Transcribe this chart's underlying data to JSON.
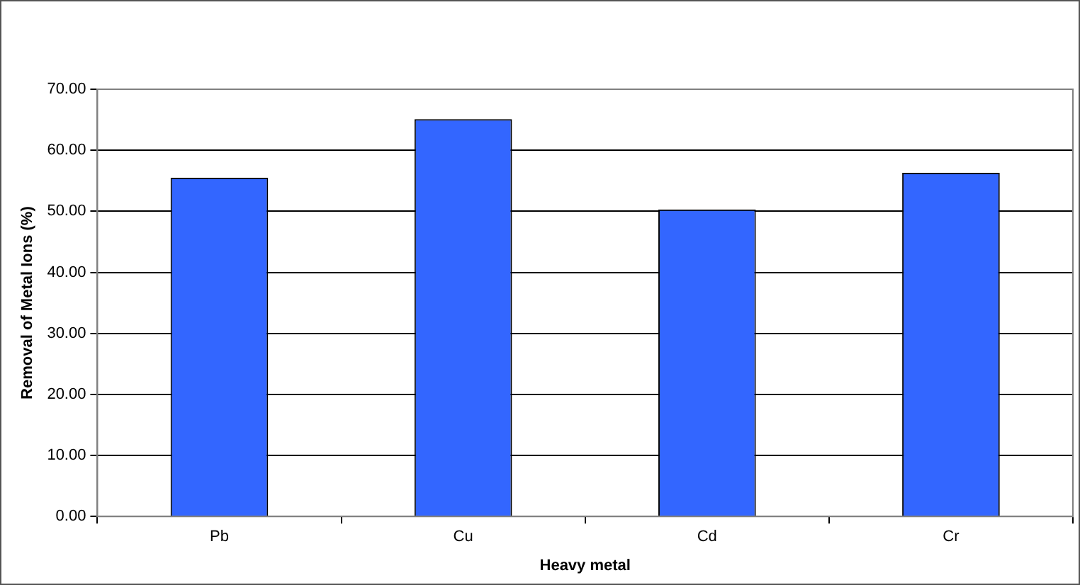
{
  "chart_data": {
    "type": "bar",
    "xlabel": "Heavy metal",
    "ylabel": "Removal of Metal Ions (%)",
    "categories": [
      "Pb",
      "Cu",
      "Cd",
      "Cr"
    ],
    "values": [
      55.5,
      65.1,
      50.3,
      56.3
    ],
    "color": "#3366ff",
    "ylim": [
      0,
      70
    ],
    "yticks": [
      {
        "value": 0,
        "label": "0.00"
      },
      {
        "value": 10,
        "label": "10.00"
      },
      {
        "value": 20,
        "label": "20.00"
      },
      {
        "value": 30,
        "label": "30.00"
      },
      {
        "value": 40,
        "label": "40.00"
      },
      {
        "value": 50,
        "label": "50.00"
      },
      {
        "value": 60,
        "label": "60.00"
      },
      {
        "value": 70,
        "label": "70.00"
      }
    ],
    "grid": "y",
    "legend": false
  }
}
